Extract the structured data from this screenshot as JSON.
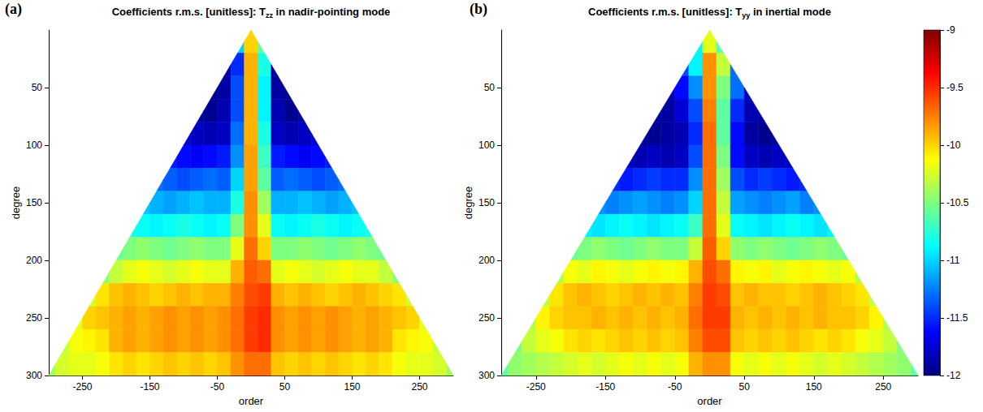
{
  "chart_data": [
    {
      "type": "heatmap",
      "label": "(a)",
      "title": "Coefficients r.m.s. [unitless]: Tzz in nadir-pointing mode",
      "title_subscript": "zz",
      "x_label": "order",
      "y_label": "degree",
      "xlim": [
        -300,
        300
      ],
      "xticks": [
        -250,
        -150,
        -50,
        50,
        150,
        250
      ],
      "ylim": [
        0,
        300
      ],
      "yticks": [
        50,
        100,
        150,
        200,
        250,
        300
      ],
      "orders": [
        -300,
        -280,
        -260,
        -240,
        -220,
        -200,
        -180,
        -160,
        -140,
        -120,
        -100,
        -80,
        -60,
        -40,
        -20,
        0,
        20,
        40,
        60,
        80,
        100,
        120,
        140,
        160,
        180,
        200,
        220,
        240,
        260,
        280,
        300
      ],
      "degrees": [
        10,
        30,
        50,
        70,
        90,
        110,
        130,
        150,
        170,
        190,
        210,
        230,
        250,
        270,
        290
      ],
      "values": [
        [
          null,
          null,
          null,
          null,
          null,
          null,
          null,
          null,
          null,
          null,
          null,
          null,
          null,
          null,
          -11.0,
          -10.0,
          -10.6,
          null,
          null,
          null,
          null,
          null,
          null,
          null,
          null,
          null,
          null,
          null,
          null,
          null,
          null
        ],
        [
          null,
          null,
          null,
          null,
          null,
          null,
          null,
          null,
          null,
          null,
          null,
          null,
          null,
          -11.9,
          -11.5,
          -9.9,
          -10.8,
          -11.9,
          null,
          null,
          null,
          null,
          null,
          null,
          null,
          null,
          null,
          null,
          null,
          null,
          null
        ],
        [
          null,
          null,
          null,
          null,
          null,
          null,
          null,
          null,
          null,
          null,
          null,
          null,
          -11.95,
          -11.9,
          -11.4,
          -9.9,
          -10.9,
          -11.9,
          -11.95,
          null,
          null,
          null,
          null,
          null,
          null,
          null,
          null,
          null,
          null,
          null,
          null
        ],
        [
          null,
          null,
          null,
          null,
          null,
          null,
          null,
          null,
          null,
          null,
          null,
          -11.9,
          -11.95,
          -11.85,
          -11.4,
          -9.9,
          -10.9,
          -11.85,
          -11.95,
          -11.9,
          null,
          null,
          null,
          null,
          null,
          null,
          null,
          null,
          null,
          null,
          null
        ],
        [
          null,
          null,
          null,
          null,
          null,
          null,
          null,
          null,
          null,
          null,
          -11.75,
          -11.8,
          -11.85,
          -11.8,
          -11.3,
          -9.9,
          -10.8,
          -11.8,
          -11.85,
          -11.8,
          -11.75,
          null,
          null,
          null,
          null,
          null,
          null,
          null,
          null,
          null,
          null
        ],
        [
          null,
          null,
          null,
          null,
          null,
          null,
          null,
          null,
          null,
          -11.55,
          -11.6,
          -11.65,
          -11.6,
          -11.55,
          -11.2,
          -9.85,
          -10.7,
          -11.55,
          -11.6,
          -11.65,
          -11.6,
          -11.55,
          null,
          null,
          null,
          null,
          null,
          null,
          null,
          null,
          null
        ],
        [
          null,
          null,
          null,
          null,
          null,
          null,
          null,
          null,
          -11.3,
          -11.35,
          -11.4,
          -11.35,
          -11.3,
          -11.35,
          -11.0,
          -9.85,
          -10.6,
          -11.35,
          -11.3,
          -11.35,
          -11.4,
          -11.35,
          -11.3,
          null,
          null,
          null,
          null,
          null,
          null,
          null,
          null
        ],
        [
          null,
          null,
          null,
          null,
          null,
          null,
          null,
          -11.05,
          -11.1,
          -11.15,
          -11.1,
          -11.05,
          -11.1,
          -11.1,
          -10.8,
          -9.8,
          -10.4,
          -11.1,
          -11.1,
          -11.05,
          -11.1,
          -11.15,
          -11.1,
          -11.05,
          null,
          null,
          null,
          null,
          null,
          null,
          null
        ],
        [
          null,
          null,
          null,
          null,
          null,
          null,
          -10.8,
          -10.85,
          -10.9,
          -10.85,
          -10.8,
          -10.85,
          -10.9,
          -10.85,
          -10.5,
          -9.8,
          -10.2,
          -10.85,
          -10.9,
          -10.85,
          -10.8,
          -10.85,
          -10.9,
          -10.85,
          -10.8,
          null,
          null,
          null,
          null,
          null,
          null
        ],
        [
          null,
          null,
          null,
          null,
          null,
          -10.55,
          -10.5,
          -10.45,
          -10.5,
          -10.55,
          -10.5,
          -10.45,
          -10.5,
          -10.5,
          -10.2,
          -9.7,
          -10.0,
          -10.5,
          -10.5,
          -10.45,
          -10.5,
          -10.55,
          -10.5,
          -10.45,
          -10.5,
          -10.55,
          null,
          null,
          null,
          null,
          null
        ],
        [
          null,
          null,
          null,
          null,
          -10.45,
          -10.3,
          -10.2,
          -10.15,
          -10.2,
          -10.25,
          -10.2,
          -10.15,
          -10.2,
          -10.2,
          -9.9,
          -9.65,
          -9.7,
          -10.2,
          -10.15,
          -10.2,
          -10.25,
          -10.2,
          -10.15,
          -10.2,
          -10.2,
          -10.3,
          -10.45,
          null,
          null,
          null,
          null
        ],
        [
          null,
          null,
          null,
          -10.25,
          -10.05,
          -9.95,
          -9.9,
          -9.95,
          -10.0,
          -9.95,
          -9.9,
          -9.95,
          -9.9,
          -9.9,
          -9.75,
          -9.6,
          -9.55,
          -9.9,
          -9.95,
          -9.9,
          -9.95,
          -10.0,
          -9.95,
          -9.9,
          -9.95,
          -10.0,
          -10.05,
          -10.25,
          null,
          null,
          null
        ],
        [
          null,
          null,
          -10.2,
          -10.0,
          -9.95,
          -9.9,
          -9.85,
          -9.9,
          -9.85,
          -9.8,
          -9.85,
          -9.8,
          -9.85,
          -9.8,
          -9.7,
          -9.55,
          -9.5,
          -9.8,
          -9.85,
          -9.8,
          -9.85,
          -9.8,
          -9.85,
          -9.9,
          -9.85,
          -9.9,
          -9.95,
          -10.0,
          -10.2,
          null,
          null
        ],
        [
          null,
          -10.3,
          -10.15,
          -10.1,
          -10.05,
          -9.9,
          -9.85,
          -9.9,
          -9.85,
          -9.8,
          -9.85,
          -9.8,
          -9.85,
          -9.8,
          -9.7,
          -9.55,
          -9.5,
          -9.8,
          -9.85,
          -9.8,
          -9.85,
          -9.8,
          -9.85,
          -9.9,
          -9.85,
          -9.9,
          -10.05,
          -10.1,
          -10.15,
          -10.3,
          null
        ],
        [
          -10.4,
          -10.25,
          -10.2,
          -10.2,
          -10.15,
          -10.05,
          -10.0,
          -10.05,
          -10.0,
          -9.95,
          -10.0,
          -9.95,
          -10.0,
          -9.95,
          -9.8,
          -9.7,
          -9.7,
          -9.95,
          -10.0,
          -9.95,
          -10.0,
          -9.95,
          -10.0,
          -10.05,
          -10.0,
          -10.05,
          -10.15,
          -10.2,
          -10.2,
          -10.25,
          -10.4
        ]
      ]
    },
    {
      "type": "heatmap",
      "label": "(b)",
      "title": "Coefficients r.m.s. [unitless]: Tyy in inertial mode",
      "title_subscript": "yy",
      "x_label": "order",
      "y_label": "degree",
      "xlim": [
        -300,
        300
      ],
      "xticks": [
        -250,
        -150,
        -50,
        50,
        150,
        250
      ],
      "ylim": [
        0,
        300
      ],
      "yticks": [
        50,
        100,
        150,
        200,
        250,
        300
      ],
      "orders": [
        -300,
        -280,
        -260,
        -240,
        -220,
        -200,
        -180,
        -160,
        -140,
        -120,
        -100,
        -80,
        -60,
        -40,
        -20,
        0,
        20,
        40,
        60,
        80,
        100,
        120,
        140,
        160,
        180,
        200,
        220,
        240,
        260,
        280,
        300
      ],
      "degrees": [
        10,
        30,
        50,
        70,
        90,
        110,
        130,
        150,
        170,
        190,
        210,
        230,
        250,
        270,
        290
      ],
      "values": [
        [
          null,
          null,
          null,
          null,
          null,
          null,
          null,
          null,
          null,
          null,
          null,
          null,
          null,
          null,
          -10.9,
          -10.2,
          -10.6,
          null,
          null,
          null,
          null,
          null,
          null,
          null,
          null,
          null,
          null,
          null,
          null,
          null,
          null
        ],
        [
          null,
          null,
          null,
          null,
          null,
          null,
          null,
          null,
          null,
          null,
          null,
          null,
          null,
          -11.4,
          -10.9,
          -9.8,
          -10.3,
          -11.3,
          null,
          null,
          null,
          null,
          null,
          null,
          null,
          null,
          null,
          null,
          null,
          null,
          null
        ],
        [
          null,
          null,
          null,
          null,
          null,
          null,
          null,
          null,
          null,
          null,
          null,
          null,
          -11.85,
          -11.6,
          -11.2,
          -9.8,
          -10.5,
          -11.3,
          -11.8,
          null,
          null,
          null,
          null,
          null,
          null,
          null,
          null,
          null,
          null,
          null,
          null
        ],
        [
          null,
          null,
          null,
          null,
          null,
          null,
          null,
          null,
          null,
          null,
          null,
          -11.9,
          -11.9,
          -11.75,
          -11.4,
          -9.75,
          -10.6,
          -11.5,
          -11.85,
          -11.9,
          null,
          null,
          null,
          null,
          null,
          null,
          null,
          null,
          null,
          null,
          null
        ],
        [
          null,
          null,
          null,
          null,
          null,
          null,
          null,
          null,
          null,
          null,
          -11.9,
          -11.95,
          -11.9,
          -11.85,
          -11.5,
          -9.7,
          -10.6,
          -11.6,
          -11.9,
          -11.95,
          -11.9,
          null,
          null,
          null,
          null,
          null,
          null,
          null,
          null,
          null,
          null
        ],
        [
          null,
          null,
          null,
          null,
          null,
          null,
          null,
          null,
          null,
          -11.8,
          -11.85,
          -11.8,
          -11.85,
          -11.8,
          -11.4,
          -9.7,
          -10.5,
          -11.6,
          -11.8,
          -11.85,
          -11.8,
          -11.8,
          null,
          null,
          null,
          null,
          null,
          null,
          null,
          null,
          null
        ],
        [
          null,
          null,
          null,
          null,
          null,
          null,
          null,
          null,
          -11.5,
          -11.55,
          -11.5,
          -11.45,
          -11.5,
          -11.5,
          -11.2,
          -9.7,
          -10.4,
          -11.4,
          -11.5,
          -11.45,
          -11.5,
          -11.55,
          -11.5,
          null,
          null,
          null,
          null,
          null,
          null,
          null,
          null
        ],
        [
          null,
          null,
          null,
          null,
          null,
          null,
          null,
          -11.2,
          -11.25,
          -11.2,
          -11.15,
          -11.2,
          -11.25,
          -11.2,
          -11.0,
          -9.7,
          -10.3,
          -11.15,
          -11.2,
          -11.25,
          -11.2,
          -11.15,
          -11.25,
          -11.2,
          null,
          null,
          null,
          null,
          null,
          null,
          null
        ],
        [
          null,
          null,
          null,
          null,
          null,
          null,
          -10.9,
          -10.95,
          -10.9,
          -10.85,
          -10.9,
          -10.95,
          -10.9,
          -10.85,
          -10.7,
          -9.7,
          -10.2,
          -10.85,
          -10.9,
          -10.95,
          -10.9,
          -10.85,
          -10.9,
          -10.95,
          -10.9,
          null,
          null,
          null,
          null,
          null,
          null
        ],
        [
          null,
          null,
          null,
          null,
          null,
          -10.55,
          -10.5,
          -10.45,
          -10.5,
          -10.55,
          -10.5,
          -10.45,
          -10.5,
          -10.5,
          -10.3,
          -9.65,
          -10.0,
          -10.45,
          -10.5,
          -10.45,
          -10.5,
          -10.55,
          -10.5,
          -10.45,
          -10.5,
          -10.55,
          null,
          null,
          null,
          null,
          null
        ],
        [
          null,
          null,
          null,
          null,
          -10.35,
          -10.15,
          -10.2,
          -10.1,
          -10.15,
          -10.2,
          -10.15,
          -10.1,
          -10.15,
          -10.1,
          -9.9,
          -9.6,
          -9.7,
          -10.1,
          -10.15,
          -10.1,
          -10.2,
          -10.15,
          -10.1,
          -10.15,
          -10.2,
          -10.15,
          -10.35,
          null,
          null,
          null,
          null
        ],
        [
          null,
          null,
          null,
          -10.3,
          -10.05,
          -9.95,
          -9.9,
          -9.95,
          -10.0,
          -9.95,
          -9.9,
          -9.95,
          -9.9,
          -9.95,
          -9.75,
          -9.55,
          -9.6,
          -9.95,
          -9.9,
          -9.95,
          -9.95,
          -10.0,
          -9.95,
          -9.9,
          -9.95,
          -10.0,
          -10.05,
          -10.3,
          null,
          null,
          null
        ],
        [
          null,
          null,
          -10.35,
          -10.1,
          -10.0,
          -9.95,
          -9.95,
          -9.9,
          -9.95,
          -9.9,
          -9.95,
          -9.9,
          -9.95,
          -9.9,
          -9.7,
          -9.55,
          -9.55,
          -9.9,
          -9.95,
          -9.9,
          -9.95,
          -9.9,
          -9.95,
          -9.9,
          -9.95,
          -9.95,
          -10.0,
          -10.1,
          -10.35,
          null,
          null
        ],
        [
          null,
          -10.5,
          -10.3,
          -10.2,
          -10.15,
          -10.05,
          -10.0,
          -10.05,
          -10.0,
          -9.95,
          -10.0,
          -9.95,
          -10.0,
          -9.95,
          -9.75,
          -9.6,
          -9.6,
          -9.95,
          -10.0,
          -9.95,
          -10.0,
          -9.95,
          -10.0,
          -10.05,
          -10.0,
          -10.05,
          -10.15,
          -10.2,
          -10.3,
          -10.5,
          null
        ],
        [
          -10.6,
          -10.45,
          -10.4,
          -10.35,
          -10.3,
          -10.25,
          -10.2,
          -10.25,
          -10.2,
          -10.15,
          -10.2,
          -10.15,
          -10.2,
          -10.15,
          -9.9,
          -9.8,
          -9.8,
          -10.15,
          -10.2,
          -10.15,
          -10.2,
          -10.15,
          -10.2,
          -10.25,
          -10.2,
          -10.25,
          -10.3,
          -10.35,
          -10.4,
          -10.45,
          -10.6
        ]
      ]
    }
  ],
  "colorbar": {
    "range": [
      -12,
      -9
    ],
    "ticks": [
      -12,
      -11.5,
      -11,
      -10.5,
      -10,
      -9.5,
      -9
    ]
  }
}
